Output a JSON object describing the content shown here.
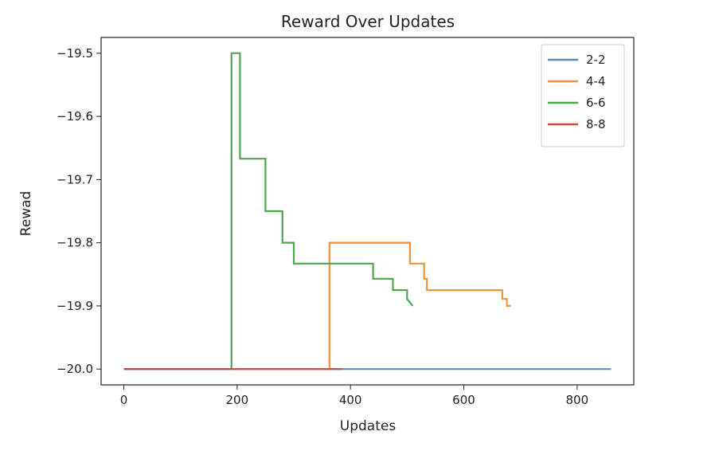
{
  "chart_data": {
    "type": "line",
    "title": "Reward Over Updates",
    "xlabel": "Updates",
    "ylabel": "Rewad",
    "xlim": [
      -40,
      900
    ],
    "ylim": [
      -20.025,
      -19.475
    ],
    "xticks": [
      0,
      200,
      400,
      600,
      800
    ],
    "yticks": [
      -20.0,
      -19.9,
      -19.8,
      -19.7,
      -19.6,
      -19.5
    ],
    "ytick_labels": [
      "−20.0",
      "−19.9",
      "−19.8",
      "−19.7",
      "−19.6",
      "−19.5"
    ],
    "legend_position": "upper right",
    "grid": false,
    "series": [
      {
        "name": "2-2",
        "color": "#5b8cc6",
        "x": [
          0,
          860
        ],
        "y": [
          -20.0,
          -20.0
        ]
      },
      {
        "name": "4-4",
        "color": "#f5913b",
        "x": [
          0,
          363,
          363,
          505,
          505,
          530,
          530,
          535,
          535,
          668,
          668,
          676,
          676,
          683
        ],
        "y": [
          -20.0,
          -20.0,
          -19.8,
          -19.8,
          -19.833,
          -19.833,
          -19.857,
          -19.857,
          -19.875,
          -19.875,
          -19.889,
          -19.889,
          -19.9,
          -19.9
        ]
      },
      {
        "name": "6-6",
        "color": "#4fa84f",
        "x": [
          0,
          190,
          190,
          205,
          205,
          250,
          250,
          280,
          280,
          300,
          300,
          440,
          440,
          475,
          475,
          500,
          500,
          510
        ],
        "y": [
          -20.0,
          -20.0,
          -19.5,
          -19.5,
          -19.667,
          -19.667,
          -19.75,
          -19.75,
          -19.8,
          -19.8,
          -19.833,
          -19.833,
          -19.857,
          -19.857,
          -19.875,
          -19.875,
          -19.889,
          -19.9
        ]
      },
      {
        "name": "8-8",
        "color": "#c94a45",
        "x": [
          0,
          385
        ],
        "y": [
          -20.0,
          -20.0
        ]
      }
    ]
  }
}
